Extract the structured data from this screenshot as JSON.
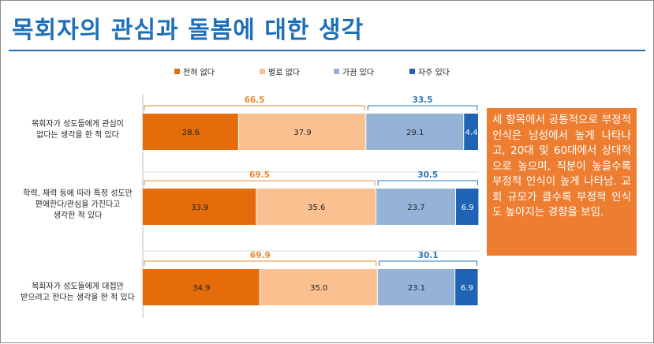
{
  "title": "목회자의 관심과 돌봄에 대한 생각",
  "note": "세 항목에서 공통적으로 부정적 인식은 남성에서 높게 나타나고, 20대 및 60대에서 상대적으로 높으며, 직분이 높을수록 부정적 인식이 높게 나타남. 교회 규모가 클수록 부정적 인식도 높아지는 경향을 보임.",
  "colors": {
    "title": "#1f6fb8",
    "note_bg": "#ed7d31",
    "bracket_negative": "#e68a2e",
    "bracket_positive": "#2e75b6"
  },
  "chart_data": {
    "type": "bar",
    "orientation": "horizontal",
    "stacked": true,
    "legend_position": "top",
    "categories": [
      "목회자가 성도들에게 관심이 없다는 생각을 한 적 있다",
      "학력, 재력 등에 따라 특정 성도만 편애한다/관심을 가진다고 생각한 적 있다",
      "목회자가 성도들에게 대접만 받으려고 한다는 생각을 한 적 있다"
    ],
    "category_lines": [
      [
        "목회자가 성도들에게 관심이",
        "없다는 생각을 한 적 있다"
      ],
      [
        "학력, 재력 등에 따라 특정 성도만",
        "편애한다/관심을 가진다고",
        "생각한 적 있다"
      ],
      [
        "목회자가 성도들에게 대접만",
        "받으려고 한다는 생각을 한 적 있다"
      ]
    ],
    "series": [
      {
        "name": "전혀 없다",
        "color": "#e46c0a",
        "values": [
          28.6,
          33.9,
          34.9
        ]
      },
      {
        "name": "별로 없다",
        "color": "#fac090",
        "values": [
          37.9,
          35.6,
          35.0
        ]
      },
      {
        "name": "가끔 있다",
        "color": "#95b3d7",
        "values": [
          29.1,
          23.7,
          23.1
        ]
      },
      {
        "name": "자주 있다",
        "color": "#1f64b4",
        "values": [
          4.4,
          6.9,
          6.9
        ]
      }
    ],
    "value_labels": [
      [
        "28.6",
        "37.9",
        "29.1",
        "4.4"
      ],
      [
        "33.9",
        "35.6",
        "23.7",
        "6.9"
      ],
      [
        "34.9",
        "35.0",
        "23.1",
        "6.9"
      ]
    ],
    "negative_totals": [
      "66.5",
      "69.5",
      "69.9"
    ],
    "positive_totals": [
      "33.5",
      "30.5",
      "30.1"
    ],
    "xlim": [
      0,
      100
    ],
    "grid": false
  }
}
